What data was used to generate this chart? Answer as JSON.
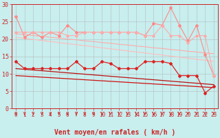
{
  "xlabel": "Vent moyen/en rafales ( km/h )",
  "xlim": [
    -0.5,
    23.5
  ],
  "ylim": [
    0,
    30
  ],
  "yticks": [
    0,
    5,
    10,
    15,
    20,
    25,
    30
  ],
  "xticks": [
    0,
    1,
    2,
    3,
    4,
    5,
    6,
    7,
    8,
    9,
    10,
    11,
    12,
    13,
    14,
    15,
    16,
    17,
    18,
    19,
    20,
    21,
    22,
    23
  ],
  "bg_color": "#c8eeee",
  "grid_color": "#b0b0b0",
  "series": [
    {
      "name": "rafales_peak",
      "color": "#ff8888",
      "linewidth": 0.8,
      "marker": "D",
      "markersize": 2.0,
      "y": [
        26.5,
        20.5,
        22,
        20.5,
        22,
        21,
        24,
        22,
        22,
        22,
        22,
        22,
        22,
        22,
        22,
        21,
        24.5,
        24,
        29,
        24,
        19.5,
        24,
        15.5,
        9.5
      ]
    },
    {
      "name": "trend_high_top",
      "color": "#ffaaaa",
      "linewidth": 0.8,
      "marker": null,
      "y": [
        21.5,
        21.3,
        21.0,
        20.8,
        20.5,
        20.3,
        20.0,
        19.8,
        19.5,
        19.3,
        19.0,
        18.8,
        18.5,
        18.3,
        18.0,
        17.8,
        17.5,
        17.3,
        17.0,
        16.8,
        16.5,
        16.3,
        16.0,
        15.8
      ]
    },
    {
      "name": "trend_high_mid",
      "color": "#ffbbbb",
      "linewidth": 0.8,
      "marker": null,
      "y": [
        20.5,
        20.2,
        19.9,
        19.6,
        19.3,
        19.0,
        18.7,
        18.4,
        18.1,
        17.8,
        17.5,
        17.2,
        16.9,
        16.6,
        16.3,
        16.0,
        15.7,
        15.4,
        15.1,
        14.8,
        14.5,
        14.2,
        13.9,
        13.6
      ]
    },
    {
      "name": "rafales_low_line",
      "color": "#ffaaaa",
      "linewidth": 0.8,
      "marker": "D",
      "markersize": 1.8,
      "y": [
        22,
        22,
        22,
        22,
        22,
        22,
        21,
        21,
        22,
        22,
        22,
        22,
        22,
        22,
        22,
        21,
        21,
        24,
        21,
        21,
        19,
        21,
        21,
        9.5
      ]
    },
    {
      "name": "vent_main",
      "color": "#dd2222",
      "linewidth": 0.9,
      "marker": "D",
      "markersize": 2.0,
      "y": [
        13.5,
        11.5,
        11.5,
        11.5,
        11.5,
        11.5,
        11.5,
        13.5,
        11.5,
        11.5,
        13.5,
        13,
        11.5,
        11.5,
        11.5,
        13.5,
        13.5,
        13.5,
        13,
        9.5,
        9.5,
        9.5,
        4.5,
        6.5
      ]
    },
    {
      "name": "trend_low_top",
      "color": "#bb1111",
      "linewidth": 0.9,
      "marker": null,
      "y": [
        11.5,
        11.3,
        11.1,
        10.9,
        10.7,
        10.5,
        10.3,
        10.1,
        9.9,
        9.7,
        9.5,
        9.3,
        9.1,
        8.9,
        8.7,
        8.5,
        8.3,
        8.1,
        7.9,
        7.7,
        7.5,
        7.3,
        7.1,
        6.9
      ]
    },
    {
      "name": "trend_low_bot",
      "color": "#cc1111",
      "linewidth": 0.9,
      "marker": null,
      "y": [
        9.5,
        9.35,
        9.2,
        9.05,
        8.9,
        8.75,
        8.6,
        8.45,
        8.3,
        8.15,
        8.0,
        7.85,
        7.7,
        7.55,
        7.4,
        7.25,
        7.1,
        6.95,
        6.8,
        6.65,
        6.5,
        6.35,
        6.2,
        6.05
      ]
    }
  ],
  "arrow_color": "#cc2222",
  "xlabel_fontsize": 7,
  "tick_fontsize": 5.5,
  "ytick_fontsize": 6.0
}
